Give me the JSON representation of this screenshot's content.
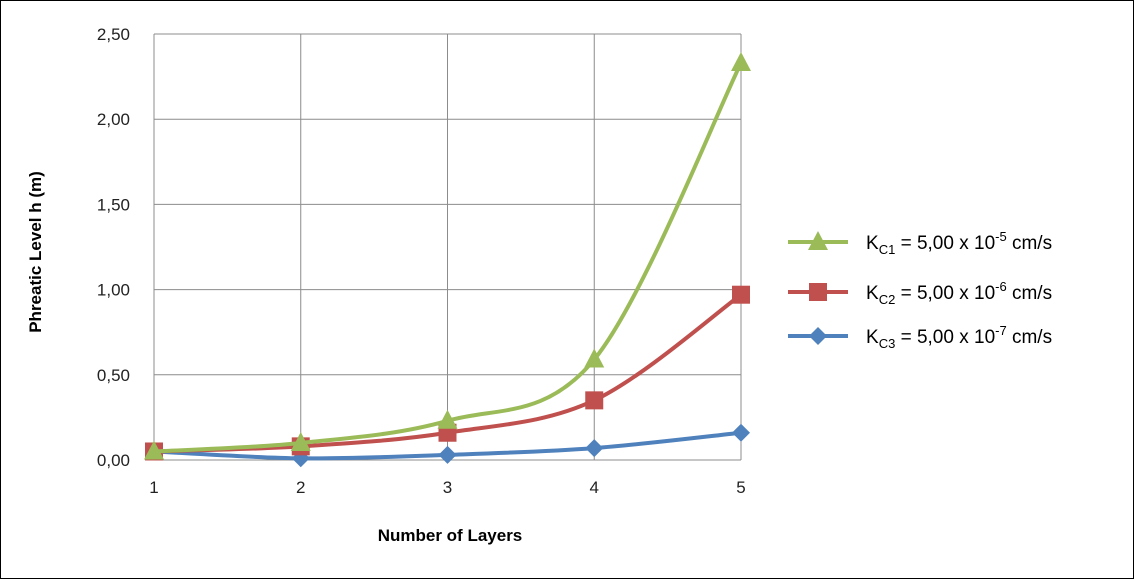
{
  "chart_data": {
    "type": "line",
    "x": [
      1,
      2,
      3,
      4,
      5
    ],
    "xlabel": "Number of Layers",
    "ylabel": "Phreatic Level h (m)",
    "ylim": [
      0,
      2.5
    ],
    "yticks": [
      "0,00",
      "0,50",
      "1,00",
      "1,50",
      "2,00",
      "2,50"
    ],
    "xticks": [
      "1",
      "2",
      "3",
      "4",
      "5"
    ],
    "grid": true,
    "legend_position": "right",
    "series": [
      {
        "name": "K_C1 = 5,00 x 10^-5 cm/s",
        "label_main": "K",
        "label_sub": "C1",
        "label_mid": " = 5,00 x 10",
        "label_sup": "-5",
        "label_end": " cm/s",
        "values": [
          0.05,
          0.1,
          0.23,
          0.59,
          2.33
        ],
        "color": "#9BBB59",
        "marker": "triangle"
      },
      {
        "name": "K_C2 = 5,00 x 10^-6 cm/s",
        "label_main": "K",
        "label_sub": "C2",
        "label_mid": " = 5,00 x 10",
        "label_sup": "-6",
        "label_end": " cm/s",
        "values": [
          0.05,
          0.08,
          0.16,
          0.35,
          0.97
        ],
        "color": "#C0504D",
        "marker": "square"
      },
      {
        "name": "K_C3 = 5,00 x 10^-7 cm/s",
        "label_main": "K",
        "label_sub": "C3",
        "label_mid": " = 5,00 x 10",
        "label_sup": "-7",
        "label_end": " cm/s",
        "values": [
          0.05,
          0.01,
          0.03,
          0.07,
          0.16
        ],
        "color": "#4F81BD",
        "marker": "diamond"
      }
    ]
  }
}
